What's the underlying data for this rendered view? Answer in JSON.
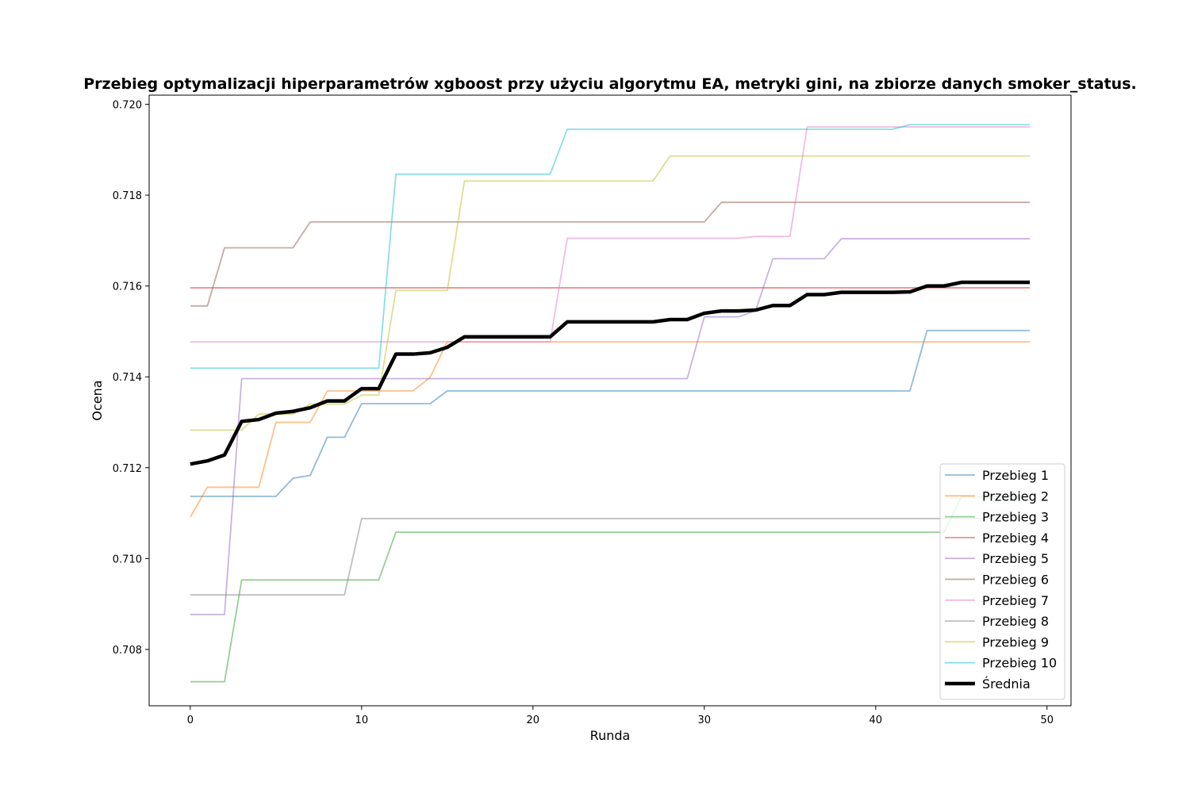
{
  "chart_data": {
    "type": "line",
    "title": "Przebieg optymalizacji hiperparametrów xgboost przy użyciu algorytmu EA, metryki gini, na zbiorze danych smoker_status.",
    "xlabel": "Runda",
    "ylabel": "Ocena",
    "xlim": [
      -2.4,
      51.4
    ],
    "ylim": [
      0.70676,
      0.7202
    ],
    "xticks": [
      0,
      10,
      20,
      30,
      40,
      50
    ],
    "xtick_labels": [
      "0",
      "10",
      "20",
      "30",
      "40",
      "50"
    ],
    "yticks": [
      0.708,
      0.71,
      0.712,
      0.714,
      0.716,
      0.718,
      0.72
    ],
    "ytick_labels": [
      "0.708",
      "0.710",
      "0.712",
      "0.714",
      "0.716",
      "0.718",
      "0.720"
    ],
    "grid": false,
    "legend_position": "lower right",
    "x": [
      0,
      1,
      2,
      3,
      4,
      5,
      6,
      7,
      8,
      9,
      10,
      11,
      12,
      13,
      14,
      15,
      16,
      17,
      18,
      19,
      20,
      21,
      22,
      23,
      24,
      25,
      26,
      27,
      28,
      29,
      30,
      31,
      32,
      33,
      34,
      35,
      36,
      37,
      38,
      39,
      40,
      41,
      42,
      43,
      44,
      45,
      46,
      47,
      48,
      49
    ],
    "series": [
      {
        "name": "Przebieg 1",
        "color": "#1f77b4",
        "values": [
          0.71137,
          0.71137,
          0.71137,
          0.71137,
          0.71137,
          0.71137,
          0.71177,
          0.71183,
          0.71267,
          0.71267,
          0.71341,
          0.71341,
          0.71341,
          0.71341,
          0.71341,
          0.71369,
          0.71369,
          0.71369,
          0.71369,
          0.71369,
          0.71369,
          0.71369,
          0.71369,
          0.71369,
          0.71369,
          0.71369,
          0.71369,
          0.71369,
          0.71369,
          0.71369,
          0.71369,
          0.71369,
          0.71369,
          0.71369,
          0.71369,
          0.71369,
          0.71369,
          0.71369,
          0.71369,
          0.71369,
          0.71369,
          0.71369,
          0.71369,
          0.71502,
          0.71502,
          0.71502,
          0.71502,
          0.71502,
          0.71502,
          0.71502
        ]
      },
      {
        "name": "Przebieg 2",
        "color": "#ff7f0e",
        "values": [
          0.71091,
          0.71157,
          0.71157,
          0.71157,
          0.71157,
          0.713,
          0.713,
          0.713,
          0.71369,
          0.71369,
          0.71369,
          0.71369,
          0.71369,
          0.71369,
          0.71399,
          0.71477,
          0.71477,
          0.71477,
          0.71477,
          0.71477,
          0.71477,
          0.71477,
          0.71477,
          0.71477,
          0.71477,
          0.71477,
          0.71477,
          0.71477,
          0.71477,
          0.71477,
          0.71477,
          0.71477,
          0.71477,
          0.71477,
          0.71477,
          0.71477,
          0.71477,
          0.71477,
          0.71477,
          0.71477,
          0.71477,
          0.71477,
          0.71477,
          0.71477,
          0.71477,
          0.71477,
          0.71477,
          0.71477,
          0.71477,
          0.71477
        ]
      },
      {
        "name": "Przebieg 3",
        "color": "#2ca02c",
        "values": [
          0.70729,
          0.70729,
          0.70729,
          0.70953,
          0.70953,
          0.70953,
          0.70953,
          0.70953,
          0.70953,
          0.70953,
          0.70953,
          0.70953,
          0.71058,
          0.71058,
          0.71058,
          0.71058,
          0.71058,
          0.71058,
          0.71058,
          0.71058,
          0.71058,
          0.71058,
          0.71058,
          0.71058,
          0.71058,
          0.71058,
          0.71058,
          0.71058,
          0.71058,
          0.71058,
          0.71058,
          0.71058,
          0.71058,
          0.71058,
          0.71058,
          0.71058,
          0.71058,
          0.71058,
          0.71058,
          0.71058,
          0.71058,
          0.71058,
          0.71058,
          0.71058,
          0.71058,
          0.71136,
          0.71136,
          0.71136,
          0.71136,
          0.71136
        ]
      },
      {
        "name": "Przebieg 4",
        "color": "#d62728",
        "values": [
          0.71596,
          0.71596,
          0.71596,
          0.71596,
          0.71596,
          0.71596,
          0.71596,
          0.71596,
          0.71596,
          0.71596,
          0.71596,
          0.71596,
          0.71596,
          0.71596,
          0.71596,
          0.71596,
          0.71596,
          0.71596,
          0.71596,
          0.71596,
          0.71596,
          0.71596,
          0.71596,
          0.71596,
          0.71596,
          0.71596,
          0.71596,
          0.71596,
          0.71596,
          0.71596,
          0.71596,
          0.71596,
          0.71596,
          0.71596,
          0.71596,
          0.71596,
          0.71596,
          0.71596,
          0.71596,
          0.71596,
          0.71596,
          0.71596,
          0.71596,
          0.71596,
          0.71596,
          0.71596,
          0.71596,
          0.71596,
          0.71596,
          0.71596
        ]
      },
      {
        "name": "Przebieg 5",
        "color": "#9467bd",
        "values": [
          0.70877,
          0.70877,
          0.70877,
          0.71396,
          0.71396,
          0.71396,
          0.71396,
          0.71396,
          0.71396,
          0.71396,
          0.71396,
          0.71396,
          0.71396,
          0.71396,
          0.71396,
          0.71396,
          0.71396,
          0.71396,
          0.71396,
          0.71396,
          0.71396,
          0.71396,
          0.71396,
          0.71396,
          0.71396,
          0.71396,
          0.71396,
          0.71396,
          0.71396,
          0.71396,
          0.71532,
          0.71532,
          0.71532,
          0.71546,
          0.7166,
          0.7166,
          0.7166,
          0.7166,
          0.71704,
          0.71704,
          0.71704,
          0.71704,
          0.71704,
          0.71704,
          0.71704,
          0.71704,
          0.71704,
          0.71704,
          0.71704,
          0.71704
        ]
      },
      {
        "name": "Przebieg 6",
        "color": "#8c564b",
        "values": [
          0.71556,
          0.71556,
          0.71684,
          0.71684,
          0.71684,
          0.71684,
          0.71684,
          0.71741,
          0.71741,
          0.71741,
          0.71741,
          0.71741,
          0.71741,
          0.71741,
          0.71741,
          0.71741,
          0.71741,
          0.71741,
          0.71741,
          0.71741,
          0.71741,
          0.71741,
          0.71741,
          0.71741,
          0.71741,
          0.71741,
          0.71741,
          0.71741,
          0.71741,
          0.71741,
          0.71741,
          0.71784,
          0.71784,
          0.71784,
          0.71784,
          0.71784,
          0.71784,
          0.71784,
          0.71784,
          0.71784,
          0.71784,
          0.71784,
          0.71784,
          0.71784,
          0.71784,
          0.71784,
          0.71784,
          0.71784,
          0.71784,
          0.71784
        ]
      },
      {
        "name": "Przebieg 7",
        "color": "#e377c2",
        "values": [
          0.71477,
          0.71477,
          0.71477,
          0.71477,
          0.71477,
          0.71477,
          0.71477,
          0.71477,
          0.71477,
          0.71477,
          0.71477,
          0.71477,
          0.71477,
          0.71477,
          0.71477,
          0.71477,
          0.71477,
          0.71477,
          0.71477,
          0.71477,
          0.71477,
          0.71477,
          0.71705,
          0.71705,
          0.71705,
          0.71705,
          0.71705,
          0.71705,
          0.71705,
          0.71705,
          0.71705,
          0.71705,
          0.71705,
          0.71709,
          0.71709,
          0.71709,
          0.7195,
          0.7195,
          0.7195,
          0.7195,
          0.7195,
          0.7195,
          0.7195,
          0.7195,
          0.7195,
          0.7195,
          0.7195,
          0.7195,
          0.7195,
          0.7195
        ]
      },
      {
        "name": "Przebieg 8",
        "color": "#7f7f7f",
        "values": [
          0.7092,
          0.7092,
          0.7092,
          0.7092,
          0.7092,
          0.7092,
          0.7092,
          0.7092,
          0.7092,
          0.7092,
          0.71088,
          0.71088,
          0.71088,
          0.71088,
          0.71088,
          0.71088,
          0.71088,
          0.71088,
          0.71088,
          0.71088,
          0.71088,
          0.71088,
          0.71088,
          0.71088,
          0.71088,
          0.71088,
          0.71088,
          0.71088,
          0.71088,
          0.71088,
          0.71088,
          0.71088,
          0.71088,
          0.71088,
          0.71088,
          0.71088,
          0.71088,
          0.71088,
          0.71088,
          0.71088,
          0.71088,
          0.71088,
          0.71088,
          0.71088,
          0.71088,
          0.71088,
          0.71088,
          0.71088,
          0.71088,
          0.71088
        ]
      },
      {
        "name": "Przebieg 9",
        "color": "#bcbd22",
        "values": [
          0.71283,
          0.71283,
          0.71283,
          0.71283,
          0.71318,
          0.71318,
          0.71318,
          0.7134,
          0.7134,
          0.7134,
          0.7136,
          0.7136,
          0.7159,
          0.7159,
          0.7159,
          0.7159,
          0.71831,
          0.71831,
          0.71831,
          0.71831,
          0.71831,
          0.71831,
          0.71831,
          0.71831,
          0.71831,
          0.71831,
          0.71831,
          0.71831,
          0.71886,
          0.71886,
          0.71886,
          0.71886,
          0.71886,
          0.71886,
          0.71886,
          0.71886,
          0.71886,
          0.71886,
          0.71886,
          0.71886,
          0.71886,
          0.71886,
          0.71886,
          0.71886,
          0.71886,
          0.71886,
          0.71886,
          0.71886,
          0.71886,
          0.71886
        ]
      },
      {
        "name": "Przebieg 10",
        "color": "#17becf",
        "values": [
          0.71419,
          0.71419,
          0.71419,
          0.71419,
          0.71419,
          0.71419,
          0.71419,
          0.71419,
          0.71419,
          0.71419,
          0.71419,
          0.71419,
          0.71846,
          0.71846,
          0.71846,
          0.71846,
          0.71846,
          0.71846,
          0.71846,
          0.71846,
          0.71846,
          0.71846,
          0.71945,
          0.71945,
          0.71945,
          0.71945,
          0.71945,
          0.71945,
          0.71945,
          0.71945,
          0.71945,
          0.71945,
          0.71945,
          0.71945,
          0.71945,
          0.71945,
          0.71945,
          0.71945,
          0.71945,
          0.71945,
          0.71945,
          0.71945,
          0.71955,
          0.71955,
          0.71955,
          0.71955,
          0.71955,
          0.71955,
          0.71955,
          0.71955
        ]
      },
      {
        "name": "Średnia",
        "color": "#000000",
        "emphasis": true,
        "values": [
          0.71208,
          0.71215,
          0.71228,
          0.71302,
          0.71306,
          0.7132,
          0.71324,
          0.71332,
          0.71347,
          0.71347,
          0.71374,
          0.71374,
          0.7145,
          0.7145,
          0.71453,
          0.71465,
          0.71488,
          0.71488,
          0.71488,
          0.71488,
          0.71488,
          0.71488,
          0.71521,
          0.71521,
          0.71521,
          0.71521,
          0.71521,
          0.71521,
          0.71526,
          0.71526,
          0.7154,
          0.71545,
          0.71545,
          0.71547,
          0.71557,
          0.71557,
          0.71581,
          0.71581,
          0.71586,
          0.71586,
          0.71586,
          0.71586,
          0.71587,
          0.716,
          0.716,
          0.71608,
          0.71608,
          0.71608,
          0.71608,
          0.71608
        ]
      }
    ]
  }
}
